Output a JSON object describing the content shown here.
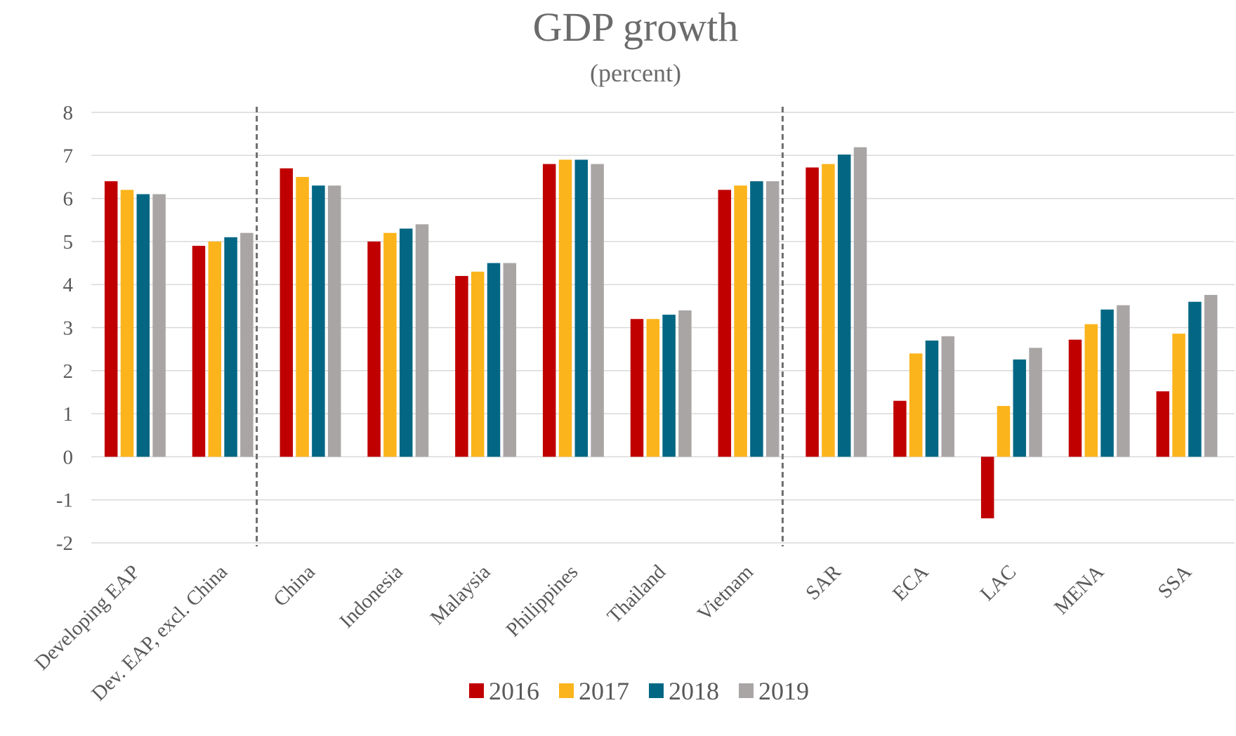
{
  "chart_data": {
    "type": "bar",
    "title": "GDP growth",
    "subtitle": "(percent)",
    "xlabel": "",
    "ylabel": "",
    "ylim": [
      -2,
      8
    ],
    "yticks": [
      8,
      7,
      6,
      5,
      4,
      3,
      2,
      1,
      0,
      -1,
      -2
    ],
    "grid": true,
    "legend_position": "bottom",
    "categories": [
      "Developing EAP",
      "Dev. EAP, excl. China",
      "China",
      "Indonesia",
      "Malaysia",
      "Philippines",
      "Thailand",
      "Vietnam",
      "SAR",
      "ECA",
      "LAC",
      "MENA",
      "SSA"
    ],
    "dividers_after": [
      "Dev. EAP, excl. China",
      "Vietnam"
    ],
    "series": [
      {
        "name": "2016",
        "color": "#c00000",
        "values": [
          6.4,
          4.9,
          6.7,
          5.0,
          4.2,
          6.8,
          3.2,
          6.2,
          6.72,
          1.3,
          -1.43,
          2.72,
          1.52
        ]
      },
      {
        "name": "2017",
        "color": "#fbb41b",
        "values": [
          6.2,
          5.0,
          6.5,
          5.2,
          4.3,
          6.9,
          3.2,
          6.3,
          6.8,
          2.4,
          1.18,
          3.08,
          2.86
        ]
      },
      {
        "name": "2018",
        "color": "#036784",
        "values": [
          6.1,
          5.1,
          6.3,
          5.3,
          4.5,
          6.9,
          3.3,
          6.4,
          7.02,
          2.7,
          2.26,
          3.42,
          3.6
        ]
      },
      {
        "name": "2019",
        "color": "#aaa5a5",
        "values": [
          6.1,
          5.2,
          6.3,
          5.4,
          4.5,
          6.8,
          3.4,
          6.4,
          7.19,
          2.8,
          2.53,
          3.52,
          3.76
        ]
      }
    ]
  }
}
